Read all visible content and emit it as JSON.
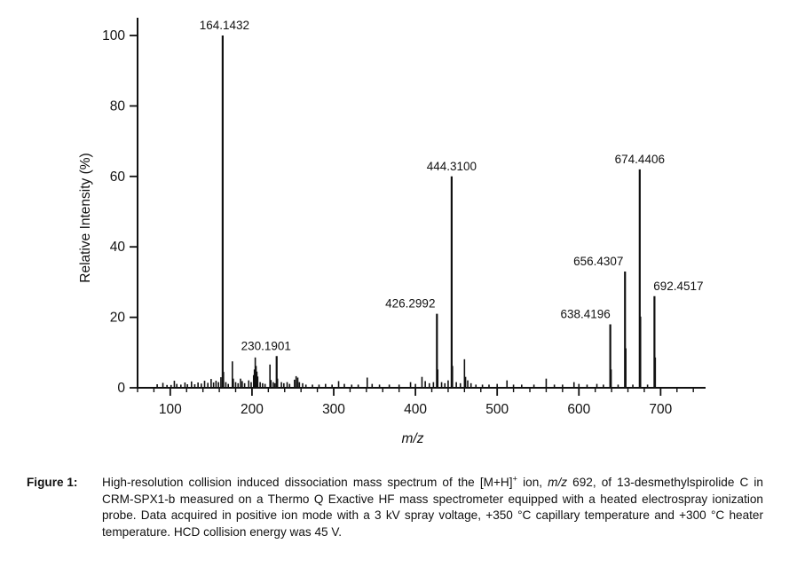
{
  "figure": {
    "background": "#ffffff",
    "ink": "#111111"
  },
  "chart_data": {
    "type": "bar",
    "subtype": "mass-spectrum",
    "title": "",
    "xlabel": "m/z",
    "ylabel": "Relative Intensity (%)",
    "xlim": [
      60,
      755
    ],
    "ylim": [
      0,
      100
    ],
    "xticks_major": [
      100,
      200,
      300,
      400,
      500,
      600,
      700
    ],
    "xtick_minor_step": 20,
    "yticks_major": [
      0,
      20,
      40,
      60,
      80,
      100
    ],
    "grid": false,
    "legend": false,
    "labeled_peaks": [
      {
        "mz": 164.1432,
        "intensity": 100,
        "label": "164.1432",
        "label_dx": 2
      },
      {
        "mz": 230.1901,
        "intensity": 9,
        "label": "230.1901",
        "label_dx": -12
      },
      {
        "mz": 426.2992,
        "intensity": 21,
        "label": "426.2992",
        "label_dx": -30
      },
      {
        "mz": 444.31,
        "intensity": 60,
        "label": "444.3100",
        "label_dx": 0
      },
      {
        "mz": 638.4196,
        "intensity": 18,
        "label": "638.4196",
        "label_dx": -28
      },
      {
        "mz": 656.4307,
        "intensity": 33,
        "label": "656.4307",
        "label_dx": -30
      },
      {
        "mz": 674.4406,
        "intensity": 62,
        "label": "674.4406",
        "label_dx": 0
      },
      {
        "mz": 692.4517,
        "intensity": 26,
        "label": "692.4517",
        "label_dx": 27
      }
    ],
    "minor_peaks": [
      [
        84,
        1.0
      ],
      [
        91,
        1.4
      ],
      [
        96,
        0.8
      ],
      [
        101,
        0.8
      ],
      [
        105,
        2.0
      ],
      [
        108,
        1.1
      ],
      [
        113,
        0.9
      ],
      [
        118,
        1.5
      ],
      [
        121,
        1.0
      ],
      [
        126,
        1.8
      ],
      [
        130,
        1.0
      ],
      [
        134,
        1.5
      ],
      [
        138,
        1.2
      ],
      [
        142,
        2.0
      ],
      [
        146,
        1.4
      ],
      [
        150,
        2.5
      ],
      [
        153,
        1.5
      ],
      [
        156,
        2.0
      ],
      [
        159,
        1.6
      ],
      [
        162,
        3.0
      ],
      [
        165.15,
        4.5
      ],
      [
        168,
        1.6
      ],
      [
        171,
        1.1
      ],
      [
        176,
        7.5
      ],
      [
        177.1,
        2.6
      ],
      [
        180,
        1.6
      ],
      [
        183,
        1.3
      ],
      [
        186,
        2.6
      ],
      [
        188,
        1.9
      ],
      [
        191,
        1.3
      ],
      [
        196,
        2.1
      ],
      [
        199,
        1.6
      ],
      [
        202,
        3.6
      ],
      [
        203,
        5.2
      ],
      [
        204,
        8.6
      ],
      [
        205,
        6.2
      ],
      [
        206,
        4.6
      ],
      [
        207,
        3.2
      ],
      [
        210,
        1.6
      ],
      [
        213,
        1.3
      ],
      [
        216,
        1.1
      ],
      [
        222,
        6.6
      ],
      [
        223.2,
        2.2
      ],
      [
        226,
        1.6
      ],
      [
        228,
        1.3
      ],
      [
        231.2,
        2.6
      ],
      [
        236,
        1.6
      ],
      [
        239,
        1.3
      ],
      [
        243,
        1.6
      ],
      [
        246,
        1.1
      ],
      [
        252,
        2.3
      ],
      [
        254,
        3.3
      ],
      [
        256,
        2.9
      ],
      [
        258,
        1.6
      ],
      [
        262,
        1.3
      ],
      [
        266,
        0.9
      ],
      [
        274,
        0.9
      ],
      [
        282,
        0.9
      ],
      [
        290,
        1.1
      ],
      [
        298,
        0.9
      ],
      [
        306,
        1.9
      ],
      [
        313,
        1.1
      ],
      [
        322,
        0.9
      ],
      [
        330,
        0.9
      ],
      [
        341,
        2.9
      ],
      [
        347,
        1.1
      ],
      [
        356,
        0.9
      ],
      [
        368,
        0.9
      ],
      [
        380,
        0.9
      ],
      [
        394,
        1.6
      ],
      [
        400,
        1.1
      ],
      [
        408,
        3.1
      ],
      [
        412,
        1.9
      ],
      [
        417,
        1.3
      ],
      [
        422,
        1.6
      ],
      [
        427.3,
        5.2
      ],
      [
        432,
        1.6
      ],
      [
        436,
        1.3
      ],
      [
        440,
        2.1
      ],
      [
        445.31,
        6.2
      ],
      [
        450,
        1.6
      ],
      [
        455,
        1.3
      ],
      [
        460,
        8.1
      ],
      [
        461.3,
        3.1
      ],
      [
        464,
        2.1
      ],
      [
        468,
        1.3
      ],
      [
        474,
        0.9
      ],
      [
        482,
        0.9
      ],
      [
        490,
        0.9
      ],
      [
        500,
        1.1
      ],
      [
        512,
        2.1
      ],
      [
        520,
        0.9
      ],
      [
        530,
        0.9
      ],
      [
        545,
        0.9
      ],
      [
        560,
        2.6
      ],
      [
        570,
        0.9
      ],
      [
        580,
        0.9
      ],
      [
        594,
        1.6
      ],
      [
        600,
        1.1
      ],
      [
        610,
        0.9
      ],
      [
        622,
        1.1
      ],
      [
        630,
        0.9
      ],
      [
        639.42,
        5.2
      ],
      [
        648,
        0.9
      ],
      [
        657.43,
        11.2
      ],
      [
        666,
        0.9
      ],
      [
        675.44,
        20.2
      ],
      [
        684,
        0.9
      ],
      [
        693.45,
        8.6
      ]
    ]
  },
  "caption": {
    "tag": "Figure 1:",
    "segments": [
      {
        "t": "High-resolution collision induced dissociation mass spectrum of the [M+H]"
      },
      {
        "t": "+",
        "sup": true
      },
      {
        "t": " ion, "
      },
      {
        "t": "m/z",
        "italic": true
      },
      {
        "t": " 692, of 13-desmethylspirolide C in CRM-SPX1-b measured on a Thermo Q Exactive HF mass spectrometer equipped with a heated electrospray ionization probe. Data acquired in positive ion mode with a 3 kV spray voltage, +350 °C capillary temperature and +300 °C heater temperature. HCD collision energy was 45 V."
      }
    ]
  }
}
